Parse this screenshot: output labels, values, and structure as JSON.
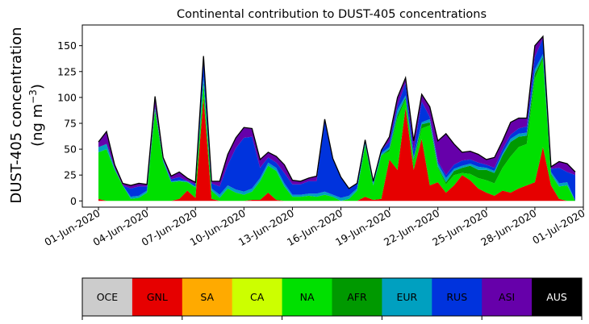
{
  "chart_data": {
    "type": "area",
    "stacked": true,
    "title": "Continental contribution to DUST-405 concentrations",
    "ylabel_line1": "DUST-405 concentration",
    "ylabel_line2_prefix": "(ng m",
    "ylabel_line2_sup": "−3",
    "ylabel_line2_suffix": ")",
    "x_start": "2020-05-31",
    "x_end": "2020-07-01",
    "x_tick_labels": [
      "01-Jun-2020",
      "04-Jun-2020",
      "07-Jun-2020",
      "10-Jun-2020",
      "13-Jun-2020",
      "16-Jun-2020",
      "19-Jun-2020",
      "22-Jun-2020",
      "25-Jun-2020",
      "28-Jun-2020",
      "01-Jul-2020"
    ],
    "ylim": [
      -6,
      170
    ],
    "y_ticks": [
      0,
      25,
      50,
      75,
      100,
      125,
      150
    ],
    "x": [
      "2020-06-01",
      "2020-06-01 12:00",
      "2020-06-02",
      "2020-06-02 12:00",
      "2020-06-03",
      "2020-06-03 12:00",
      "2020-06-04",
      "2020-06-04 12:00",
      "2020-06-05",
      "2020-06-05 12:00",
      "2020-06-06",
      "2020-06-06 12:00",
      "2020-06-07",
      "2020-06-07 12:00",
      "2020-06-08",
      "2020-06-08 12:00",
      "2020-06-09",
      "2020-06-09 12:00",
      "2020-06-10",
      "2020-06-10 12:00",
      "2020-06-11",
      "2020-06-11 12:00",
      "2020-06-12",
      "2020-06-12 12:00",
      "2020-06-13",
      "2020-06-13 12:00",
      "2020-06-14",
      "2020-06-14 12:00",
      "2020-06-15",
      "2020-06-15 12:00",
      "2020-06-16",
      "2020-06-16 12:00",
      "2020-06-17",
      "2020-06-17 12:00",
      "2020-06-18",
      "2020-06-18 12:00",
      "2020-06-19",
      "2020-06-19 12:00",
      "2020-06-20",
      "2020-06-20 12:00",
      "2020-06-21",
      "2020-06-21 12:00",
      "2020-06-22",
      "2020-06-22 12:00",
      "2020-06-23",
      "2020-06-23 12:00",
      "2020-06-24",
      "2020-06-24 12:00",
      "2020-06-25",
      "2020-06-25 12:00",
      "2020-06-26",
      "2020-06-26 12:00",
      "2020-06-27",
      "2020-06-27 12:00",
      "2020-06-28",
      "2020-06-28 12:00",
      "2020-06-29",
      "2020-06-29 12:00",
      "2020-06-30",
      "2020-06-30 12:00"
    ],
    "series": [
      {
        "name": "OCE",
        "color": "#cccccc",
        "values": [
          0,
          0,
          0,
          0,
          0,
          0,
          0,
          0,
          0,
          0,
          0,
          0,
          0,
          0,
          0,
          0,
          0,
          0,
          0,
          0,
          0,
          0,
          0,
          0,
          0,
          0,
          0,
          0,
          0,
          0,
          0,
          0,
          0,
          0,
          0,
          0,
          0,
          0,
          0,
          0,
          0,
          0,
          0,
          0,
          0,
          0,
          0,
          0,
          0,
          0,
          0,
          0,
          0,
          0,
          0,
          0,
          0,
          0,
          0,
          0
        ]
      },
      {
        "name": "GNL",
        "color": "#e60000",
        "values": [
          2,
          0,
          0,
          0,
          0,
          0,
          0,
          0,
          0,
          0,
          2,
          10,
          3,
          100,
          2,
          0,
          0,
          0,
          0,
          1,
          1,
          8,
          1,
          0,
          0,
          0,
          0,
          0,
          0,
          0,
          0,
          0,
          0,
          4,
          1,
          2,
          40,
          30,
          90,
          30,
          60,
          15,
          18,
          8,
          15,
          25,
          20,
          12,
          8,
          5,
          10,
          8,
          12,
          15,
          18,
          52,
          15,
          2,
          0,
          0
        ]
      },
      {
        "name": "SA",
        "color": "#ffaa00",
        "values": [
          0,
          0,
          0,
          0,
          0,
          0,
          0,
          0,
          0,
          0,
          0,
          0,
          0,
          0,
          0,
          0,
          0,
          0,
          0,
          0,
          0,
          0,
          0,
          0,
          0,
          0,
          0,
          0,
          0,
          0,
          0,
          0,
          0,
          0,
          0,
          0,
          0,
          0,
          0,
          0,
          0,
          0,
          0,
          0,
          0,
          0,
          0,
          0,
          0,
          0,
          0,
          0,
          0,
          0,
          0,
          0,
          0,
          0,
          0,
          0
        ]
      },
      {
        "name": "CA",
        "color": "#ccff00",
        "values": [
          0,
          0,
          0,
          0,
          0,
          0,
          0,
          0,
          0,
          0,
          0,
          0,
          0,
          0,
          0,
          0,
          0,
          0,
          0,
          0,
          0,
          0,
          0,
          0,
          0,
          0,
          0,
          0,
          0,
          0,
          0,
          0,
          0,
          0,
          0,
          0,
          0,
          0,
          0,
          0,
          0,
          0,
          0,
          0,
          0,
          0,
          0,
          0,
          0,
          0,
          0,
          0,
          0,
          0,
          0,
          0,
          0,
          0,
          0,
          0
        ]
      },
      {
        "name": "NA",
        "color": "#00e000",
        "values": [
          45,
          50,
          30,
          15,
          2,
          3,
          8,
          88,
          38,
          18,
          17,
          8,
          10,
          15,
          8,
          3,
          12,
          8,
          6,
          8,
          18,
          26,
          28,
          14,
          4,
          4,
          5,
          4,
          6,
          4,
          0,
          2,
          10,
          50,
          14,
          42,
          8,
          50,
          8,
          8,
          10,
          58,
          14,
          8,
          10,
          2,
          6,
          10,
          12,
          12,
          22,
          35,
          40,
          40,
          100,
          85,
          10,
          12,
          15,
          0
        ]
      },
      {
        "name": "AFR",
        "color": "#009900",
        "values": [
          0,
          0,
          0,
          0,
          0,
          0,
          0,
          0,
          0,
          0,
          0,
          0,
          0,
          0,
          0,
          0,
          0,
          0,
          0,
          0,
          0,
          0,
          0,
          0,
          0,
          0,
          0,
          0,
          0,
          0,
          0,
          0,
          0,
          0,
          0,
          0,
          2,
          3,
          2,
          2,
          4,
          3,
          1,
          2,
          4,
          5,
          8,
          8,
          10,
          10,
          12,
          14,
          10,
          8,
          5,
          2,
          1,
          0,
          0,
          0
        ]
      },
      {
        "name": "EUR",
        "color": "#00a0c0",
        "values": [
          5,
          5,
          2,
          0,
          2,
          2,
          2,
          3,
          2,
          1,
          1,
          1,
          1,
          5,
          2,
          3,
          3,
          3,
          3,
          3,
          3,
          3,
          3,
          3,
          2,
          2,
          2,
          3,
          3,
          2,
          3,
          3,
          2,
          2,
          2,
          2,
          2,
          5,
          2,
          2,
          2,
          3,
          3,
          4,
          2,
          2,
          2,
          3,
          2,
          2,
          2,
          3,
          3,
          3,
          4,
          3,
          2,
          3,
          3,
          0
        ]
      },
      {
        "name": "RUS",
        "color": "#0033dd",
        "values": [
          0,
          0,
          0,
          0,
          8,
          9,
          4,
          0,
          0,
          2,
          3,
          0,
          2,
          20,
          5,
          8,
          20,
          40,
          52,
          50,
          10,
          5,
          5,
          10,
          10,
          10,
          12,
          12,
          70,
          35,
          20,
          7,
          5,
          3,
          2,
          3,
          5,
          4,
          12,
          6,
          20,
          2,
          2,
          3,
          4,
          5,
          4,
          4,
          3,
          3,
          4,
          4,
          5,
          6,
          12,
          15,
          3,
          15,
          10,
          25
        ]
      },
      {
        "name": "ASI",
        "color": "#6600aa",
        "values": [
          5,
          12,
          3,
          2,
          3,
          3,
          2,
          10,
          2,
          3,
          5,
          3,
          2,
          0,
          2,
          5,
          10,
          10,
          10,
          8,
          8,
          5,
          6,
          8,
          4,
          3,
          3,
          5,
          0,
          0,
          0,
          0,
          0,
          0,
          0,
          0,
          5,
          8,
          5,
          10,
          7,
          10,
          20,
          40,
          20,
          8,
          8,
          8,
          5,
          10,
          8,
          12,
          10,
          8,
          11,
          2,
          2,
          6,
          8,
          3
        ]
      },
      {
        "name": "AUS",
        "color": "#000000",
        "values": [
          0,
          0,
          0,
          0,
          0,
          0,
          0,
          0,
          0,
          0,
          0,
          0,
          0,
          0,
          0,
          0,
          0,
          0,
          0,
          0,
          0,
          0,
          0,
          0,
          0,
          0,
          0,
          0,
          0,
          0,
          0,
          0,
          0,
          0,
          0,
          0,
          0,
          0,
          0,
          0,
          0,
          0,
          0,
          0,
          0,
          0,
          0,
          0,
          0,
          0,
          0,
          0,
          0,
          0,
          0,
          0,
          0,
          0,
          0,
          0
        ]
      }
    ],
    "legend_placement": "bottom",
    "grid": false
  }
}
